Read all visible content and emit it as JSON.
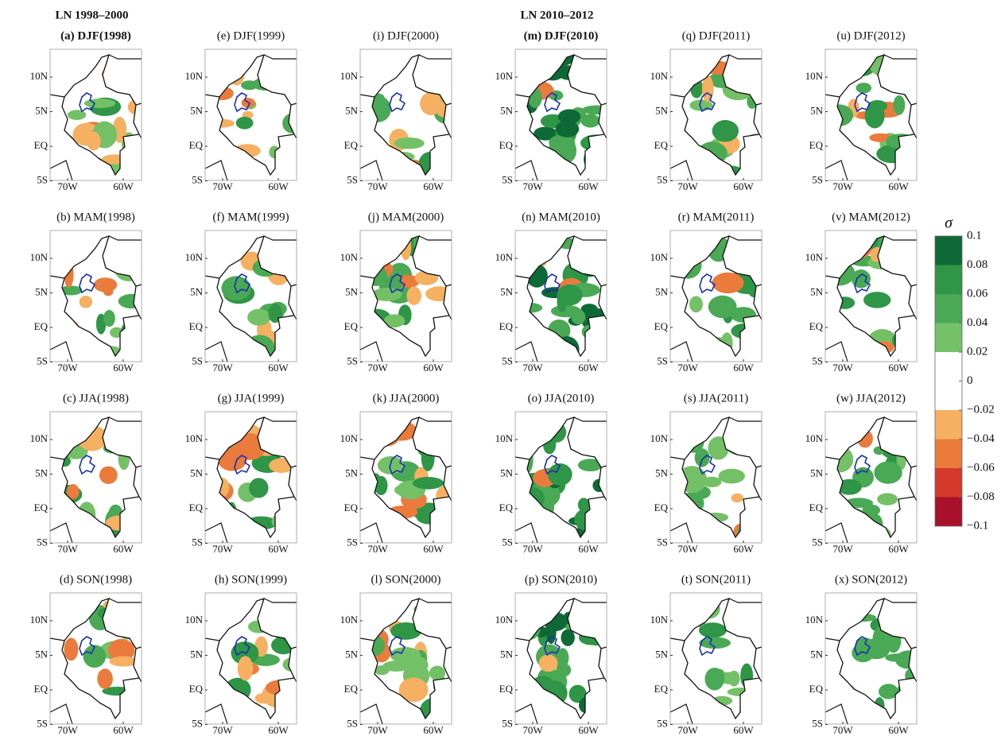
{
  "group_titles": [
    "LN 1998–2000",
    "LN 2010–2012"
  ],
  "panels": [
    "(a) DJF(1998)",
    "(b) MAM(1998)",
    "(c) JJA(1998)",
    "(d) SON(1998)",
    "(e) DJF(1999)",
    "(f) MAM(1999)",
    "(g) JJA(1999)",
    "(h) SON(1999)",
    "(i) DJF(2000)",
    "(j) MAM(2000)",
    "(k) JJA(2000)",
    "(l) SON(2000)",
    "(m) DJF(2010)",
    "(n) MAM(2010)",
    "(o) JJA(2010)",
    "(p) SON(2010)",
    "(q) DJF(2011)",
    "(r) MAM(2011)",
    "(s) JJA(2011)",
    "(t) SON(2011)",
    "(u) DJF(2012)",
    "(v) MAM(2012)",
    "(w) JJA(2012)",
    "(x) SON(2012)"
  ],
  "lat_ticks": [
    {
      "value": 10,
      "label": "10N"
    },
    {
      "value": 5,
      "label": "5N"
    },
    {
      "value": 0,
      "label": "EQ"
    },
    {
      "value": -5,
      "label": "5S"
    }
  ],
  "lon_ticks": [
    {
      "value": -70,
      "label": "70W"
    },
    {
      "value": -60,
      "label": "60W"
    }
  ],
  "colorbar": {
    "label": "σ",
    "ticks": [
      0.1,
      0.08,
      0.06,
      0.04,
      0.02,
      0,
      {
        "value": -0.02,
        "label": "−0.02"
      },
      {
        "value": -0.04,
        "label": "−0.04"
      },
      {
        "value": -0.06,
        "label": "−0.06"
      },
      {
        "value": -0.08,
        "label": "−0.08"
      },
      {
        "value": -0.1,
        "label": "−0.1"
      }
    ],
    "colors": [
      "#0d6a36",
      "#2e9646",
      "#4aa955",
      "#74c067",
      "#ffffff",
      "#ffffff",
      "#f5b062",
      "#ea7b3d",
      "#d3382a",
      "#a8102b"
    ]
  }
}
